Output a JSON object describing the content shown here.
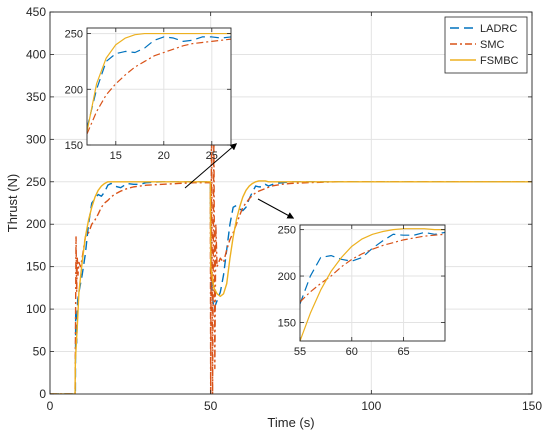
{
  "chart_data": [
    {
      "type": "line",
      "role": "main",
      "xlabel": "Time (s)",
      "ylabel": "Thrust (N)",
      "xlim": [
        0,
        150
      ],
      "ylim": [
        0,
        450
      ],
      "xticks": [
        0,
        50,
        100,
        150
      ],
      "yticks": [
        0,
        50,
        100,
        150,
        200,
        250,
        300,
        350,
        400,
        450
      ],
      "grid": true,
      "legend_position": "top-right",
      "series": [
        {
          "name": "LADRC",
          "color": "#0072BD",
          "dash": "dashed",
          "x": [
            0,
            7.9,
            8.0,
            8.3,
            8.6,
            9.0,
            9.5,
            10.0,
            11.0,
            12.0,
            13.0,
            14.0,
            15.0,
            16.0,
            17.0,
            18.0,
            19.0,
            20.0,
            22.0,
            24.0,
            26.0,
            28.0,
            30.0,
            35.0,
            40.0,
            45.0,
            49.9,
            50.1,
            50.4,
            51.0,
            52.0,
            53.0,
            54.0,
            55.0,
            56.0,
            57.0,
            58.0,
            59.0,
            60.0,
            61.0,
            62.0,
            63.0,
            64.0,
            65.0,
            66.0,
            67.0,
            68.0,
            70.0,
            75.0,
            80.0,
            90.0,
            100.0,
            120.0,
            150.0
          ],
          "y": [
            0,
            0,
            100,
            60,
            110,
            120,
            130,
            140,
            165,
            200,
            225,
            230,
            235,
            233,
            238,
            246,
            248,
            245,
            243,
            248,
            247,
            247,
            249,
            250,
            250,
            250,
            250,
            150,
            120,
            100,
            110,
            120,
            140,
            170,
            200,
            220,
            222,
            218,
            216,
            220,
            230,
            238,
            245,
            244,
            244,
            247,
            245,
            248,
            250,
            250,
            250,
            250,
            250,
            250
          ]
        },
        {
          "name": "SMC",
          "color": "#D95319",
          "dash": "dashdot",
          "x": [
            0,
            7.8,
            7.9,
            8.1,
            8.3,
            8.5,
            8.7,
            9.0,
            9.5,
            10.0,
            11.0,
            12.0,
            13.0,
            14.0,
            15.0,
            16.0,
            17.0,
            18.0,
            19.0,
            20.0,
            22.0,
            24.0,
            26.0,
            28.0,
            30.0,
            35.0,
            40.0,
            45.0,
            49.9,
            50.0,
            50.3,
            50.6,
            51.0,
            51.3,
            51.6,
            52.0,
            53.0,
            54.0,
            55.0,
            56.0,
            57.0,
            58.0,
            59.0,
            60.0,
            61.0,
            62.0,
            63.0,
            64.0,
            65.0,
            67.0,
            69.0,
            72.0,
            75.0,
            80.0,
            90.0,
            100.0,
            120.0,
            150.0
          ],
          "y": [
            0,
            0,
            50,
            185,
            120,
            160,
            140,
            155,
            150,
            160,
            185,
            190,
            200,
            205,
            212,
            220,
            225,
            228,
            232,
            235,
            239,
            242,
            244,
            245,
            246,
            247,
            248,
            249,
            249,
            0,
            330,
            0,
            310,
            30,
            200,
            150,
            160,
            155,
            170,
            182,
            190,
            200,
            210,
            220,
            225,
            230,
            234,
            237,
            239,
            242,
            245,
            247,
            248,
            249,
            250,
            250,
            250,
            250
          ]
        },
        {
          "name": "FSMBC",
          "color": "#EDB120",
          "dash": "solid",
          "x": [
            0,
            7.8,
            7.9,
            8.2,
            8.5,
            9.0,
            10.0,
            11.0,
            12.0,
            13.0,
            14.0,
            15.0,
            16.0,
            17.0,
            18.0,
            19.0,
            20.0,
            21.0,
            22.0,
            24.0,
            26.0,
            30.0,
            40.0,
            49.9,
            50.0,
            51.0,
            52.0,
            53.0,
            54.0,
            55.0,
            56.0,
            57.0,
            58.0,
            59.0,
            60.0,
            61.0,
            62.0,
            63.0,
            64.0,
            65.0,
            66.0,
            67.0,
            68.0,
            70.0,
            72.0,
            75.0,
            80.0,
            90.0,
            100.0,
            120.0,
            150.0
          ],
          "y": [
            0,
            0,
            40,
            60,
            80,
            120,
            155,
            185,
            205,
            220,
            232,
            240,
            245,
            248,
            250,
            250,
            250,
            250,
            250,
            250,
            250,
            250,
            250,
            250,
            150,
            125,
            118,
            115,
            118,
            130,
            160,
            185,
            205,
            220,
            232,
            240,
            245,
            248,
            250,
            251,
            251,
            251,
            250,
            250,
            250,
            250,
            250,
            250,
            250,
            250,
            250
          ]
        }
      ]
    },
    {
      "type": "line",
      "role": "inset",
      "xlim": [
        12,
        27
      ],
      "ylim": [
        150,
        255
      ],
      "xticks": [
        15,
        20,
        25
      ],
      "yticks": [
        150,
        200,
        250
      ],
      "grid": true,
      "series": [
        {
          "name": "LADRC",
          "x": [
            12,
            13,
            14,
            15,
            16,
            17,
            18,
            19,
            20,
            21,
            22,
            23,
            24,
            25,
            26,
            27
          ],
          "y": [
            165,
            200,
            225,
            232,
            234,
            233,
            237,
            244,
            247,
            246,
            243,
            244,
            247,
            247,
            246,
            247
          ]
        },
        {
          "name": "SMC",
          "x": [
            12,
            13,
            14,
            15,
            16,
            17,
            18,
            19,
            20,
            21,
            22,
            23,
            24,
            25,
            26,
            27
          ],
          "y": [
            160,
            180,
            195,
            205,
            213,
            220,
            225,
            230,
            233,
            236,
            239,
            241,
            242,
            243,
            244,
            245
          ]
        },
        {
          "name": "FSMBC",
          "x": [
            12,
            13,
            14,
            15,
            16,
            17,
            18,
            19,
            20,
            21,
            22,
            23,
            24,
            25,
            26,
            27
          ],
          "y": [
            162,
            205,
            228,
            240,
            246,
            249,
            250,
            250,
            250,
            250,
            250,
            250,
            250,
            250,
            250,
            250
          ]
        }
      ]
    },
    {
      "type": "line",
      "role": "inset",
      "xlim": [
        55,
        69
      ],
      "ylim": [
        130,
        255
      ],
      "xticks": [
        55,
        60,
        65
      ],
      "yticks": [
        150,
        200,
        250
      ],
      "grid": true,
      "series": [
        {
          "name": "LADRC",
          "x": [
            55,
            56,
            57,
            58,
            59,
            60,
            61,
            62,
            63,
            64,
            65,
            66,
            67,
            68,
            69
          ],
          "y": [
            170,
            200,
            220,
            222,
            218,
            216,
            220,
            230,
            238,
            245,
            244,
            244,
            247,
            245,
            247
          ]
        },
        {
          "name": "SMC",
          "x": [
            55,
            56,
            57,
            58,
            59,
            60,
            61,
            62,
            63,
            64,
            65,
            66,
            67,
            68,
            69
          ],
          "y": [
            172,
            183,
            192,
            200,
            210,
            218,
            224,
            229,
            233,
            236,
            239,
            241,
            243,
            244,
            245
          ]
        },
        {
          "name": "FSMBC",
          "x": [
            55,
            56,
            57,
            58,
            59,
            60,
            61,
            62,
            63,
            64,
            65,
            66,
            67,
            68,
            69
          ],
          "y": [
            130,
            160,
            185,
            205,
            220,
            232,
            240,
            245,
            248,
            250,
            251,
            251,
            251,
            250,
            250
          ]
        }
      ]
    }
  ]
}
